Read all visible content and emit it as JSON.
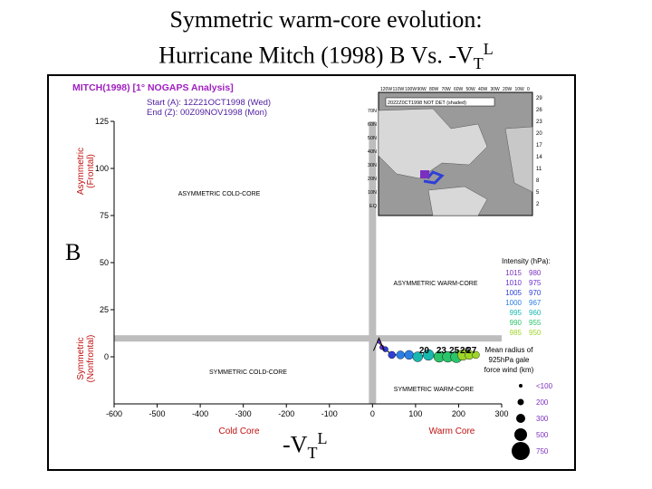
{
  "slide": {
    "title_line1": "Symmetric warm-core evolution:",
    "title_line2_text": "Hurricane Mitch (1998)   B Vs. -V",
    "title_line2_sub": "T",
    "title_line2_sup": "L",
    "left_axis_letter": "B",
    "bottom_axis_text": "-V",
    "bottom_axis_sub": "T",
    "bottom_axis_sup": "L"
  },
  "chart_data": {
    "type": "scatter",
    "header": "MITCH(1998) [1° NOGAPS Analysis]",
    "start_label": "Start (A): 12Z21OCT1998 (Wed)",
    "end_label": "End (Z): 00Z09NOV1998 (Mon)",
    "xlabel_left": "Cold Core",
    "xlabel_right": "Warm Core",
    "ylabel_top": [
      "Asymmetric",
      "(Frontal)"
    ],
    "ylabel_bottom": [
      "Symmetric",
      "(Nonfrontal)"
    ],
    "xlim": [
      -600,
      300
    ],
    "ylim": [
      -25,
      125
    ],
    "x_ticks": [
      -600,
      -500,
      -400,
      -300,
      -200,
      -100,
      0,
      100,
      200,
      300
    ],
    "y_ticks": [
      0,
      25,
      50,
      75,
      100,
      125
    ],
    "thresholds": {
      "x": 0,
      "y": 10
    },
    "quadrant_labels": [
      "ASYMMETRIC COLD-CORE",
      "ASYMMETRIC WARM-CORE",
      "SYMMETRIC COLD-CORE",
      "SYMMETRIC WARM-CORE"
    ],
    "intensity_title": "Intensity (hPa):",
    "intensity_legend": [
      {
        "left": "1015",
        "right": "980",
        "color": "#7b2fbf"
      },
      {
        "left": "1010",
        "right": "975",
        "color": "#6a2fd0"
      },
      {
        "left": "1005",
        "right": "970",
        "color": "#2e3fd8"
      },
      {
        "left": "1000",
        "right": "967",
        "color": "#2a7fe6"
      },
      {
        "left": "995",
        "right": "960",
        "color": "#19b8b0"
      },
      {
        "left": "990",
        "right": "955",
        "color": "#2bc46a"
      },
      {
        "left": "985",
        "right": "950",
        "color": "#9ed52a"
      }
    ],
    "radius_title": [
      "Mean radius of",
      "925hPa gale",
      "force wind (km)"
    ],
    "radius_legend": [
      {
        "label": "<100",
        "size": 2
      },
      {
        "label": "200",
        "size": 3.5
      },
      {
        "label": "300",
        "size": 5
      },
      {
        "label": "500",
        "size": 7
      },
      {
        "label": "750",
        "size": 10
      }
    ],
    "track_labels": [
      "20",
      "23",
      "25",
      "26",
      "27"
    ],
    "track_points": [
      {
        "x": 15,
        "y": 8,
        "r": 2,
        "color": "#6a2fd0"
      },
      {
        "x": 22,
        "y": 5,
        "r": 2.5,
        "color": "#6a2fd0"
      },
      {
        "x": 30,
        "y": 4,
        "r": 3,
        "color": "#2e3fd8"
      },
      {
        "x": 45,
        "y": 1,
        "r": 4,
        "color": "#2e3fd8"
      },
      {
        "x": 65,
        "y": 1,
        "r": 4.5,
        "color": "#2a7fe6"
      },
      {
        "x": 85,
        "y": 1,
        "r": 5,
        "color": "#2a7fe6"
      },
      {
        "x": 105,
        "y": 0,
        "r": 5.5,
        "color": "#19b8b0"
      },
      {
        "x": 130,
        "y": 1,
        "r": 6,
        "color": "#19b8b0"
      },
      {
        "x": 155,
        "y": 0,
        "r": 6,
        "color": "#2bc46a"
      },
      {
        "x": 175,
        "y": 0,
        "r": 6,
        "color": "#2bc46a"
      },
      {
        "x": 195,
        "y": 0,
        "r": 6.5,
        "color": "#2bc46a"
      },
      {
        "x": 210,
        "y": 1,
        "r": 6,
        "color": "#9ed52a"
      },
      {
        "x": 225,
        "y": 1,
        "r": 5,
        "color": "#9ed52a"
      },
      {
        "x": 240,
        "y": 1,
        "r": 4,
        "color": "#9ed52a"
      }
    ],
    "inset": {
      "lon_labels": [
        "120W",
        "110W",
        "100W",
        "90W",
        "80W",
        "70W",
        "60W",
        "50W",
        "40W",
        "30W",
        "20W",
        "10W",
        "0"
      ],
      "lat_labels_left": [
        "70N",
        "60N",
        "50N",
        "40N",
        "30N",
        "20N",
        "10N",
        "EQ"
      ],
      "lat_labels_right": [
        "29",
        "26",
        "23",
        "20",
        "17",
        "14",
        "11",
        "8",
        "5",
        "2"
      ],
      "caption": "2022Z0CT1998 NOT DET (shaded)"
    }
  }
}
